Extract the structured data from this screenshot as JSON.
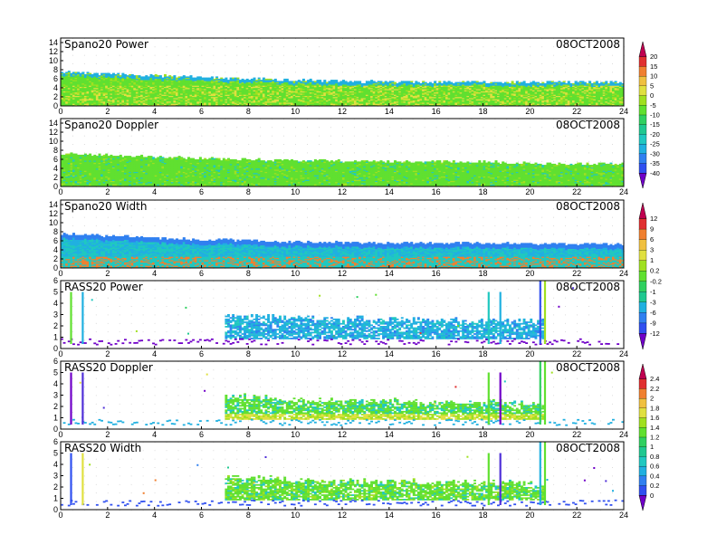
{
  "colors": {
    "palette": [
      "#7000c8",
      "#5030d8",
      "#3050f0",
      "#3080f0",
      "#20b0e0",
      "#20c8c0",
      "#20c890",
      "#30d060",
      "#60e030",
      "#a0e020",
      "#e0e040",
      "#f0c040",
      "#f08030",
      "#e03030"
    ]
  },
  "chart_data": [
    {
      "type": "heatmap",
      "title": "Spano20 Power",
      "date": "08OCT2008",
      "x_ticks": [
        "0",
        "2",
        "4",
        "6",
        "8",
        "10",
        "12",
        "14",
        "16",
        "18",
        "20",
        "22",
        "24"
      ],
      "y_ticks": [
        "0",
        "2",
        "4",
        "6",
        "8",
        "10",
        "12",
        "14"
      ],
      "xlim": [
        0,
        24
      ],
      "ylim": [
        0,
        15
      ],
      "data_top": {
        "x": [
          0,
          6,
          12,
          18,
          20.5,
          24
        ],
        "y": [
          7.5,
          6.3,
          5.4,
          5.3,
          5.3,
          5.3
        ]
      },
      "colorbar": "cb1"
    },
    {
      "type": "heatmap",
      "title": "Spano20 Doppler",
      "date": "08OCT2008",
      "x_ticks": [
        "0",
        "2",
        "4",
        "6",
        "8",
        "10",
        "12",
        "14",
        "16",
        "18",
        "20",
        "22",
        "24"
      ],
      "y_ticks": [
        "0",
        "2",
        "4",
        "6",
        "8",
        "10",
        "12",
        "14"
      ],
      "xlim": [
        0,
        24
      ],
      "ylim": [
        0,
        15
      ],
      "data_top": {
        "x": [
          0,
          6,
          12,
          18,
          20.5,
          24
        ],
        "y": [
          7.3,
          6.2,
          5.6,
          5.5,
          5.0,
          5.0
        ]
      },
      "colorbar": "cb1"
    },
    {
      "type": "heatmap",
      "title": "Spano20 Width",
      "date": "08OCT2008",
      "x_ticks": [
        "0",
        "2",
        "4",
        "6",
        "8",
        "10",
        "12",
        "14",
        "16",
        "18",
        "20",
        "22",
        "24"
      ],
      "y_ticks": [
        "0",
        "2",
        "4",
        "6",
        "8",
        "10",
        "12",
        "14"
      ],
      "xlim": [
        0,
        24
      ],
      "ylim": [
        0,
        15
      ],
      "data_top": {
        "x": [
          0,
          6,
          12,
          18,
          20.5,
          24
        ],
        "y": [
          7.5,
          6.3,
          5.6,
          5.5,
          5.3,
          5.3
        ]
      },
      "colorbar": "cb2"
    },
    {
      "type": "heatmap",
      "title": "RASS20 Power",
      "date": "08OCT2008",
      "x_ticks": [
        "0",
        "2",
        "4",
        "6",
        "8",
        "10",
        "12",
        "14",
        "16",
        "18",
        "20",
        "22",
        "24"
      ],
      "y_ticks": [
        "0",
        "1",
        "2",
        "3",
        "4",
        "5",
        "6"
      ],
      "xlim": [
        0,
        24
      ],
      "ylim": [
        0,
        6
      ],
      "data_top": {
        "x": [
          7,
          10,
          14,
          18,
          20.5
        ],
        "y": [
          3.0,
          2.7,
          2.6,
          2.5,
          2.4
        ]
      },
      "spikes": [
        0.4,
        0.9,
        18.2,
        18.7,
        20.4,
        20.6
      ],
      "colorbar": "cb2"
    },
    {
      "type": "heatmap",
      "title": "RASS20 Doppler",
      "date": "08OCT2008",
      "x_ticks": [
        "0",
        "2",
        "4",
        "6",
        "8",
        "10",
        "12",
        "14",
        "16",
        "18",
        "20",
        "22",
        "24"
      ],
      "y_ticks": [
        "0",
        "1",
        "2",
        "3",
        "4",
        "5",
        "6"
      ],
      "xlim": [
        0,
        24
      ],
      "ylim": [
        0,
        6
      ],
      "data_top": {
        "x": [
          7,
          10,
          14,
          18,
          20.5
        ],
        "y": [
          3.0,
          2.6,
          2.5,
          2.4,
          2.3
        ]
      },
      "spikes": [
        0.4,
        0.9,
        18.2,
        18.7,
        20.4,
        20.6
      ],
      "colorbar": "cb3"
    },
    {
      "type": "heatmap",
      "title": "RASS20 Width",
      "date": "08OCT2008",
      "x_ticks": [
        "0",
        "2",
        "4",
        "6",
        "8",
        "10",
        "12",
        "14",
        "16",
        "18",
        "20",
        "22",
        "24"
      ],
      "y_ticks": [
        "0",
        "1",
        "2",
        "3",
        "4",
        "5",
        "6"
      ],
      "xlim": [
        0,
        24
      ],
      "ylim": [
        0,
        6
      ],
      "data_top": {
        "x": [
          7,
          10,
          14,
          18,
          20.5
        ],
        "y": [
          3.0,
          2.6,
          2.5,
          2.4,
          2.3
        ]
      },
      "spikes": [
        0.4,
        0.9,
        18.2,
        18.7,
        20.4,
        20.6
      ],
      "colorbar": "cb3"
    }
  ],
  "colorbars": {
    "cb1": {
      "labels": [
        "20",
        "15",
        "10",
        "5",
        "0",
        "-5",
        "-10",
        "-15",
        "-20",
        "-25",
        "-30",
        "-35",
        "-40"
      ],
      "colors": [
        "#c00050",
        "#e03030",
        "#f08030",
        "#f0c040",
        "#e0e040",
        "#a0e020",
        "#60e030",
        "#30d060",
        "#20c890",
        "#20c8c0",
        "#20b0e0",
        "#3080f0",
        "#3050f0",
        "#7000c8"
      ]
    },
    "cb2": {
      "labels": [
        "12",
        "9",
        "6",
        "3",
        "1",
        "0.2",
        "-0.2",
        "-1",
        "-3",
        "-6",
        "-9",
        "-12"
      ],
      "colors": [
        "#c00050",
        "#e03030",
        "#f08030",
        "#f0c040",
        "#e0e040",
        "#a0e020",
        "#60e030",
        "#30d060",
        "#20c890",
        "#20b0e0",
        "#3080f0",
        "#3050f0",
        "#7000c8"
      ]
    },
    "cb3": {
      "labels": [
        "2.4",
        "2.2",
        "2",
        "1.8",
        "1.6",
        "1.4",
        "1.2",
        "1",
        "0.8",
        "0.6",
        "0.4",
        "0.2",
        "0"
      ],
      "colors": [
        "#c00050",
        "#e03030",
        "#f08030",
        "#f0c040",
        "#e0e040",
        "#a0e020",
        "#60e030",
        "#30d060",
        "#20c890",
        "#20c8c0",
        "#20b0e0",
        "#3080f0",
        "#3050f0",
        "#7000c8"
      ]
    }
  }
}
